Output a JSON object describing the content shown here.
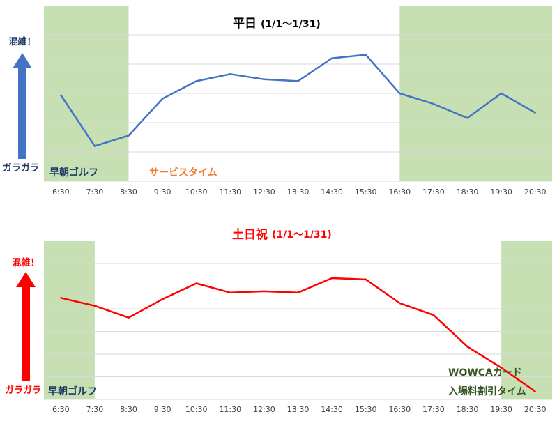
{
  "chart_data": [
    {
      "type": "line",
      "title": "平日",
      "subtitle": "(1/1〜1/31)",
      "categories": [
        "6:30",
        "7:30",
        "8:30",
        "9:30",
        "10:30",
        "11:30",
        "12:30",
        "13:30",
        "14:30",
        "15:30",
        "16:30",
        "17:30",
        "18:30",
        "19:30",
        "20:30"
      ],
      "series": [
        {
          "values": [
            24.5,
            10,
            13,
            23.5,
            28.5,
            30.5,
            29,
            28.5,
            35,
            36,
            25,
            22,
            18,
            25,
            19.5
          ],
          "color": "#4472c4"
        }
      ],
      "ylim": [
        0,
        50
      ],
      "grid": true,
      "shaded_bands": [
        {
          "from": "6:30",
          "to": "8:30",
          "color": "#c6e0b4",
          "label": "早朝ゴルフ",
          "label_color": "#1f3864"
        },
        {
          "from": "16:30",
          "to": "20:30",
          "color": "#c6e0b4"
        }
      ],
      "annotations": [
        {
          "text": "サービスタイム",
          "color": "#ed7d31"
        }
      ],
      "axis_arrow": {
        "top_label": "混雑！",
        "bottom_label": "ガラガラ",
        "color": "#4472c4",
        "label_color": "#1f3864"
      }
    },
    {
      "type": "line",
      "title": "土日祝",
      "subtitle": "(1/1〜1/31)",
      "categories": [
        "6:30",
        "7:30",
        "8:30",
        "9:30",
        "10:30",
        "11:30",
        "12:30",
        "13:30",
        "14:30",
        "15:30",
        "16:30",
        "17:30",
        "18:30",
        "19:30",
        "20:30"
      ],
      "series": [
        {
          "values": [
            38.5,
            35.5,
            31,
            38,
            44,
            40.5,
            41,
            40.5,
            46,
            45.5,
            36.5,
            32,
            20,
            12,
            3
          ],
          "color": "#ff0000"
        }
      ],
      "ylim": [
        0,
        60
      ],
      "grid": true,
      "shaded_bands": [
        {
          "from": "6:30",
          "to": "7:30",
          "color": "#c6e0b4",
          "label": "早朝ゴルフ",
          "label_color": "#1f3864"
        },
        {
          "from": "19:30",
          "to": "20:30",
          "color": "#c6e0b4"
        }
      ],
      "annotations": [
        {
          "text": "WOWCAカード",
          "color": "#375623"
        },
        {
          "text": "入場料割引タイム",
          "color": "#375623"
        }
      ],
      "axis_arrow": {
        "top_label": "混雑！",
        "bottom_label": "ガラガラ",
        "color": "#ff0000",
        "label_color": "#ff0000"
      }
    }
  ]
}
